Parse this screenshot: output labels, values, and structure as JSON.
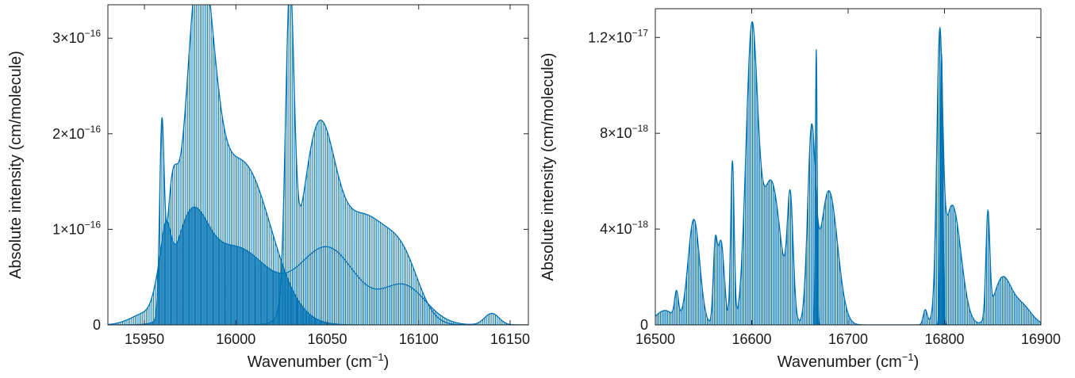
{
  "style": {
    "series_color": "#0072b2",
    "axis_color": "#262626"
  },
  "chart_data": [
    {
      "type": "line",
      "fill": "area",
      "xlabel": "Wavenumber (cm",
      "xlabel_sup": "−1",
      "xlabel_close": ")",
      "ylabel": "Absolute intensity (cm/molecule)",
      "xlim": [
        15930,
        16160
      ],
      "ylim": [
        0,
        3.35e-16
      ],
      "xticks": [
        15950,
        16000,
        16050,
        16100,
        16150
      ],
      "xtick_labels": [
        "15950",
        "16000",
        "16050",
        "16100",
        "16150"
      ],
      "yticks": [
        0,
        1e-16,
        2e-16,
        3e-16
      ],
      "ytick_labels": [
        {
          "mant": "0",
          "exp": ""
        },
        {
          "mant": "1×10",
          "exp": "−16"
        },
        {
          "mant": "2×10",
          "exp": "−16"
        },
        {
          "mant": "3×10",
          "exp": "−16"
        }
      ],
      "line_spacing": 1.0,
      "envelopes": [
        {
          "name": "base",
          "peaks": [
            {
              "x": 15950,
              "a": 1e-17,
              "w": 8
            },
            {
              "x": 15958,
              "a": 2.5e-17,
              "w": 3
            },
            {
              "x": 15962,
              "a": 5.5e-17,
              "w": 2.5
            },
            {
              "x": 15975,
              "a": 9e-17,
              "w": 9
            },
            {
              "x": 16000,
              "a": 8e-17,
              "w": 18
            },
            {
              "x": 16050,
              "a": 8e-17,
              "w": 16
            },
            {
              "x": 16092,
              "a": 4e-17,
              "w": 12
            },
            {
              "x": 16140,
              "a": 1.2e-17,
              "w": 4
            }
          ]
        },
        {
          "name": "band-a",
          "peaks": [
            {
              "x": 15959.5,
              "a": 1.85e-16,
              "w": 1.2
            },
            {
              "x": 15965,
              "a": 1.02e-16,
              "w": 3
            },
            {
              "x": 15980,
              "a": 3.28e-16,
              "w": 7.5
            },
            {
              "x": 16003,
              "a": 1.7e-16,
              "w": 16
            }
          ]
        },
        {
          "name": "band-b",
          "peaks": [
            {
              "x": 16029.5,
              "a": 3.15e-16,
              "w": 2.3
            },
            {
              "x": 16045,
              "a": 1.9e-16,
              "w": 9
            },
            {
              "x": 16070,
              "a": 1.1e-16,
              "w": 14
            },
            {
              "x": 16092,
              "a": 5e-17,
              "w": 9
            }
          ]
        }
      ]
    },
    {
      "type": "line",
      "fill": "area",
      "xlabel": "Wavenumber (cm",
      "xlabel_sup": "−1",
      "xlabel_close": ")",
      "ylabel": "Absolute intensity (cm/molecule)",
      "xlim": [
        16500,
        16900
      ],
      "ylim": [
        0,
        1.32e-17
      ],
      "xticks": [
        16500,
        16600,
        16700,
        16800,
        16900
      ],
      "xtick_labels": [
        "16500",
        "16600",
        "16700",
        "16800",
        "16900"
      ],
      "yticks": [
        0,
        4e-18,
        8e-18,
        1.2e-17
      ],
      "ytick_labels": [
        {
          "mant": "0",
          "exp": ""
        },
        {
          "mant": "4×10",
          "exp": "−18"
        },
        {
          "mant": "8×10",
          "exp": "−18"
        },
        {
          "mant": "1.2×10",
          "exp": "−17"
        }
      ],
      "line_spacing": 1.8,
      "envelopes": [
        {
          "name": "base",
          "peaks": [
            {
              "x": 16510,
              "a": 6e-19,
              "w": 10
            },
            {
              "x": 16522,
              "a": 1.1e-18,
              "w": 2
            },
            {
              "x": 16540,
              "a": 4.4e-18,
              "w": 6
            },
            {
              "x": 16562,
              "a": 2.8e-18,
              "w": 2
            },
            {
              "x": 16568,
              "a": 3.5e-18,
              "w": 3.5
            },
            {
              "x": 16580,
              "a": 6.8e-18,
              "w": 1.8
            },
            {
              "x": 16600,
              "a": 1.18e-17,
              "w": 6
            },
            {
              "x": 16620,
              "a": 6e-18,
              "w": 10
            },
            {
              "x": 16640,
              "a": 4.8e-18,
              "w": 3
            },
            {
              "x": 16662,
              "a": 7.6e-18,
              "w": 4
            },
            {
              "x": 16680,
              "a": 5.6e-18,
              "w": 9
            },
            {
              "x": 16780,
              "a": 6e-19,
              "w": 2
            },
            {
              "x": 16795,
              "a": 1.06e-17,
              "w": 3
            },
            {
              "x": 16808,
              "a": 5e-18,
              "w": 9
            },
            {
              "x": 16845,
              "a": 4.3e-18,
              "w": 2
            },
            {
              "x": 16860,
              "a": 1.9e-18,
              "w": 9
            },
            {
              "x": 16880,
              "a": 8e-19,
              "w": 10
            }
          ]
        },
        {
          "name": "spikes",
          "peaks": [
            {
              "x": 16667,
              "a": 1.15e-17,
              "w": 0.9
            },
            {
              "x": 16797,
              "a": 1.13e-17,
              "w": 1.3
            }
          ]
        }
      ]
    }
  ]
}
